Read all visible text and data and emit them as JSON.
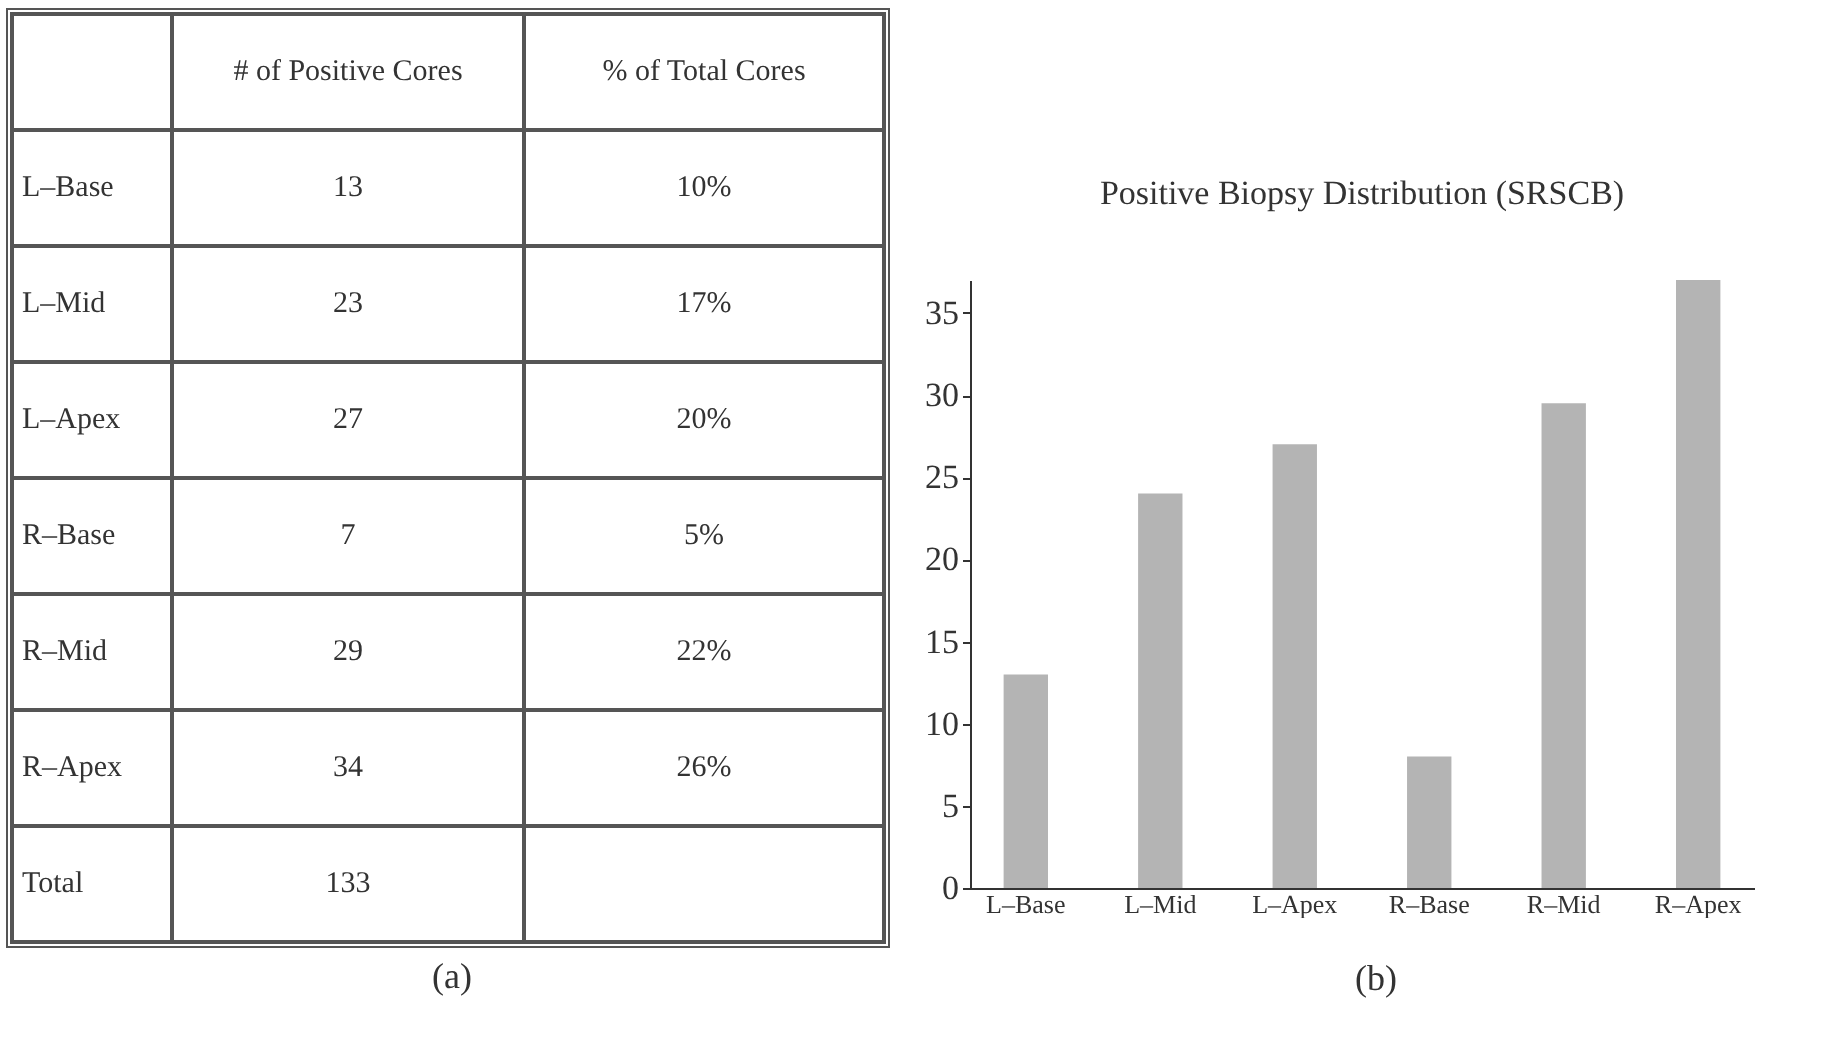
{
  "chart_data": [
    {
      "type": "other",
      "categories": [
        "L–Base",
        "L–Mid",
        "L–Apex",
        "R–Base",
        "R–Mid",
        "R–Apex",
        "Total"
      ],
      "series": [
        {
          "name": "# of Positive Cores",
          "values": [
            13,
            23,
            27,
            7,
            29,
            34,
            133
          ]
        },
        {
          "name": "% of Total Cores",
          "values": [
            10,
            17,
            20,
            5,
            22,
            26,
            null
          ],
          "value_labels": [
            "10%",
            "17%",
            "20%",
            "5%",
            "22%",
            "26%",
            null
          ]
        }
      ],
      "data_labels": true,
      "annotations": [
        "(a)"
      ]
    },
    {
      "type": "bar",
      "title": "Positive Biopsy Distribution (SRSCB)",
      "categories": [
        "L–Base",
        "L–Mid",
        "L–Apex",
        "R–Base",
        "R–Mid",
        "R–Apex"
      ],
      "values": [
        13,
        24,
        27,
        8,
        29.5,
        37
      ],
      "color": "#b4b4b4",
      "ylim": [
        0,
        37
      ],
      "yticks": [
        0,
        5,
        10,
        15,
        20,
        25,
        30,
        35
      ],
      "grid": false,
      "annotations": [
        "(b)"
      ]
    }
  ]
}
